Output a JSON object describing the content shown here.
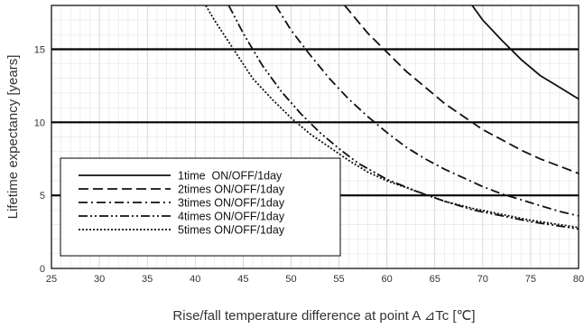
{
  "chart_data": {
    "type": "line",
    "title": "",
    "xlabel": "Rise/fall temperature difference at point A  ⊿Tc [℃]",
    "ylabel": "Lifetime expectancy [years]",
    "xlim": [
      25,
      80
    ],
    "ylim": [
      0,
      18
    ],
    "xticks": [
      25,
      30,
      35,
      40,
      45,
      50,
      55,
      60,
      65,
      70,
      75,
      80
    ],
    "yticks": [
      0,
      5,
      10,
      15
    ],
    "grid": true,
    "reference_lines_y": [
      5,
      10,
      15
    ],
    "legend_position": "bottom-left",
    "series": [
      {
        "name": "1time  ON/OFF/1day",
        "dash": "solid",
        "x": [
          68.9,
          70,
          72,
          74,
          76,
          78,
          80
        ],
        "y": [
          18,
          17.0,
          15.6,
          14.3,
          13.2,
          12.4,
          11.6
        ]
      },
      {
        "name": "2times ON/OFF/1day",
        "dash": "dash",
        "x": [
          55.6,
          58,
          60,
          62,
          64,
          66,
          68,
          70,
          72,
          74,
          76,
          78,
          80
        ],
        "y": [
          18,
          16.1,
          14.8,
          13.5,
          12.4,
          11.3,
          10.4,
          9.5,
          8.8,
          8.1,
          7.5,
          7.0,
          6.5
        ]
      },
      {
        "name": "3times ON/OFF/1day",
        "dash": "dashdot",
        "x": [
          48.4,
          50,
          52,
          54,
          56,
          58,
          60,
          62,
          64,
          66,
          68,
          70,
          72,
          74,
          76,
          78,
          80
        ],
        "y": [
          18,
          16.3,
          14.6,
          13.0,
          11.6,
          10.4,
          9.3,
          8.3,
          7.5,
          6.8,
          6.2,
          5.6,
          5.1,
          4.7,
          4.3,
          3.9,
          3.6
        ]
      },
      {
        "name": "4times ON/OFF/1day",
        "dash": "dashdotdot",
        "x": [
          43.5,
          45,
          47,
          49,
          51,
          53,
          55,
          57,
          60,
          63,
          66,
          69,
          72,
          75,
          78,
          80
        ],
        "y": [
          18,
          16.1,
          13.9,
          12.1,
          10.6,
          9.3,
          8.2,
          7.2,
          6.1,
          5.3,
          4.6,
          4.0,
          3.6,
          3.2,
          2.9,
          2.7
        ]
      },
      {
        "name": "5times ON/OFF/1day",
        "dash": "dot",
        "x": [
          41.1,
          42,
          44,
          46,
          48,
          50,
          52,
          54,
          56,
          58,
          60,
          63,
          66,
          69,
          72,
          75,
          78,
          80
        ],
        "y": [
          18,
          17.0,
          15.0,
          13.0,
          11.6,
          10.3,
          9.2,
          8.3,
          7.4,
          6.6,
          6.0,
          5.3,
          4.6,
          4.1,
          3.7,
          3.3,
          3.0,
          2.8
        ]
      }
    ]
  }
}
